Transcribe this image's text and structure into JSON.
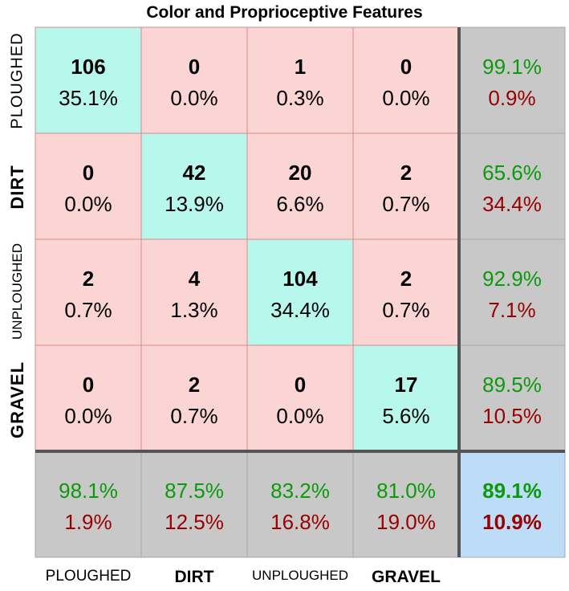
{
  "title": "Color and Proprioceptive Features",
  "row_labels": [
    "PLOUGHED",
    "DIRT",
    "UNPLOUGHED",
    "GRAVEL"
  ],
  "col_labels": [
    "PLOUGHED",
    "DIRT",
    "UNPLOUGHED",
    "GRAVEL"
  ],
  "colors": {
    "diagonal": "#b8f7ec",
    "off_diagonal": "#fbd4d4",
    "summary": "#c8c8c8",
    "overall": "#bcdcf7",
    "correct_text": "#0c9a0c",
    "error_text": "#9a0000",
    "cell_border": "#d88a8a",
    "thick_line": "#555555"
  },
  "chart_data": {
    "type": "heatmap",
    "title": "Color and Proprioceptive Features",
    "rows": [
      "PLOUGHED",
      "DIRT",
      "UNPLOUGHED",
      "GRAVEL"
    ],
    "columns": [
      "PLOUGHED",
      "DIRT",
      "UNPLOUGHED",
      "GRAVEL"
    ],
    "counts": [
      [
        106,
        0,
        1,
        0
      ],
      [
        0,
        42,
        20,
        2
      ],
      [
        2,
        4,
        104,
        2
      ],
      [
        0,
        2,
        0,
        17
      ]
    ],
    "percents": [
      [
        "35.1%",
        "0.0%",
        "0.3%",
        "0.0%"
      ],
      [
        "0.0%",
        "13.9%",
        "6.6%",
        "0.7%"
      ],
      [
        "0.7%",
        "1.3%",
        "34.4%",
        "0.7%"
      ],
      [
        "0.0%",
        "0.7%",
        "0.0%",
        "5.6%"
      ]
    ],
    "row_summary": [
      [
        "99.1%",
        "0.9%"
      ],
      [
        "65.6%",
        "34.4%"
      ],
      [
        "92.9%",
        "7.1%"
      ],
      [
        "89.5%",
        "10.5%"
      ]
    ],
    "col_summary": [
      [
        "98.1%",
        "1.9%"
      ],
      [
        "87.5%",
        "12.5%"
      ],
      [
        "83.2%",
        "16.8%"
      ],
      [
        "81.0%",
        "19.0%"
      ]
    ],
    "overall": [
      "89.1%",
      "10.9%"
    ]
  }
}
